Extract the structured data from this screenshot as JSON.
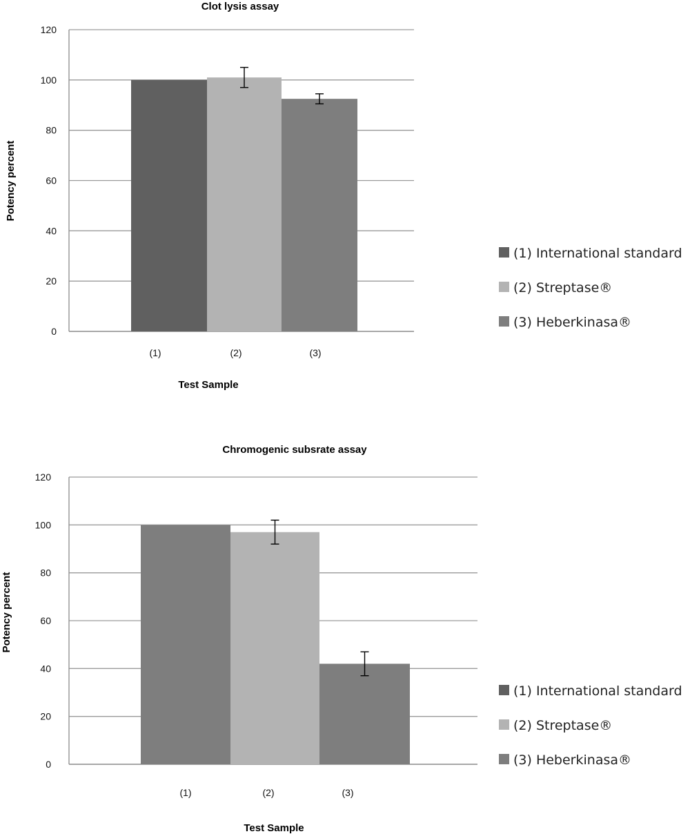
{
  "chart_data": [
    {
      "type": "bar",
      "title": "Clot lysis assay",
      "xlabel": "Test Sample",
      "ylabel": "Potency percent",
      "categories": [
        "(1)",
        "(2)",
        "(3)"
      ],
      "values": [
        100,
        101,
        92.5
      ],
      "error": [
        0,
        4,
        2
      ],
      "colors": [
        "#606060",
        "#b3b3b3",
        "#7e7e7e"
      ],
      "ylim": [
        0,
        120
      ],
      "yticks": [
        "0",
        "20",
        "40",
        "60",
        "80",
        "100",
        "120"
      ],
      "grid": true,
      "legend": [
        "(1) International standard",
        "(2) Streptase®",
        "(3) Heberkinasa®"
      ],
      "legend_placement": "right"
    },
    {
      "type": "bar",
      "title": "Chromogenic subsrate assay",
      "xlabel": "Test Sample",
      "ylabel": "Potency percent",
      "categories": [
        "(1)",
        "(2)",
        "(3)"
      ],
      "values": [
        100,
        97,
        42
      ],
      "error": [
        0,
        5,
        5
      ],
      "colors": [
        "#7e7e7e",
        "#b3b3b3",
        "#7e7e7e"
      ],
      "legend_colors": [
        "#606060",
        "#b3b3b3",
        "#7e7e7e"
      ],
      "ylim": [
        0,
        120
      ],
      "yticks": [
        "0",
        "20",
        "40",
        "60",
        "80",
        "100",
        "120"
      ],
      "grid": true,
      "legend": [
        "(1) International standard",
        "(2) Streptase®",
        "(3) Heberkinasa®"
      ],
      "legend_placement": "right"
    }
  ]
}
